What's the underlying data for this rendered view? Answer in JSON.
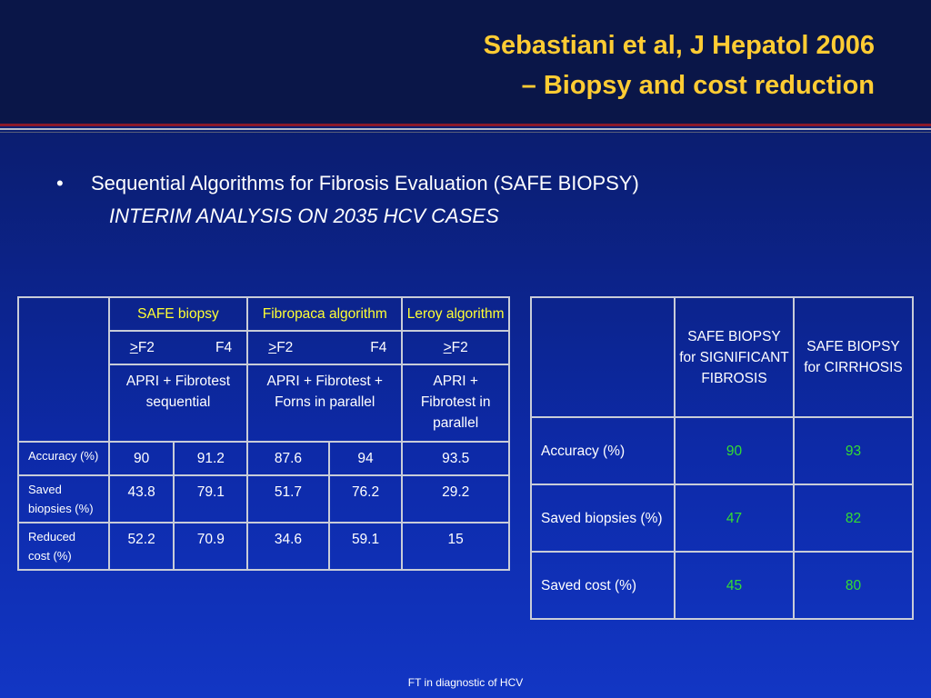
{
  "title": {
    "line1": "Sebastiani et al, J Hepatol 2006",
    "line2": "– Biopsy and cost reduction"
  },
  "bullet": {
    "symbol": "•",
    "text": "Sequential Algorithms for Fibrosis Evaluation (SAFE BIOPSY)",
    "subtext": "INTERIM ANALYSIS ON 2035 HCV CASES"
  },
  "left_table": {
    "headers": {
      "safe": "SAFE biopsy",
      "fibropaca": "Fibropaca algorithm",
      "leroy": "Leroy algorithm"
    },
    "thresholds": {
      "safe_f2_prefix": ">",
      "safe_f2": "F2",
      "safe_f4": "F4",
      "fib_f2_prefix": ">",
      "fib_f2": "F2",
      "fib_f4": "F4",
      "leroy_f2_prefix": ">",
      "leroy_f2": "F2"
    },
    "methods": {
      "safe": "APRI + Fibrotest sequential",
      "fibropaca": "APRI + Fibrotest + Forns in parallel",
      "leroy": "APRI + Fibrotest in parallel"
    },
    "rows": [
      {
        "label": "Accuracy (%)",
        "values": [
          "90",
          "91.2",
          "87.6",
          "94",
          "93.5"
        ]
      },
      {
        "label": "Saved biopsies (%)",
        "values": [
          "43.8",
          "79.1",
          "51.7",
          "76.2",
          "29.2"
        ]
      },
      {
        "label": "Reduced cost (%)",
        "values": [
          "52.2",
          "70.9",
          "34.6",
          "59.1",
          "15"
        ]
      }
    ]
  },
  "right_table": {
    "headers": {
      "col1": "SAFE BIOPSY for SIGNIFICANT FIBROSIS",
      "col2": "SAFE BIOPSY for CIRRHOSIS"
    },
    "rows": [
      {
        "label": "Accuracy (%)",
        "values": [
          "90",
          "93"
        ]
      },
      {
        "label": "Saved biopsies (%)",
        "values": [
          "47",
          "82"
        ]
      },
      {
        "label": "Saved cost (%)",
        "values": [
          "45",
          "80"
        ]
      }
    ]
  },
  "footer": "FT in diagnostic of HCV",
  "colors": {
    "title": "#ffcc33",
    "header_yellow": "#ffff33",
    "value_green": "#33dd33",
    "background": "#0d2aa8"
  }
}
